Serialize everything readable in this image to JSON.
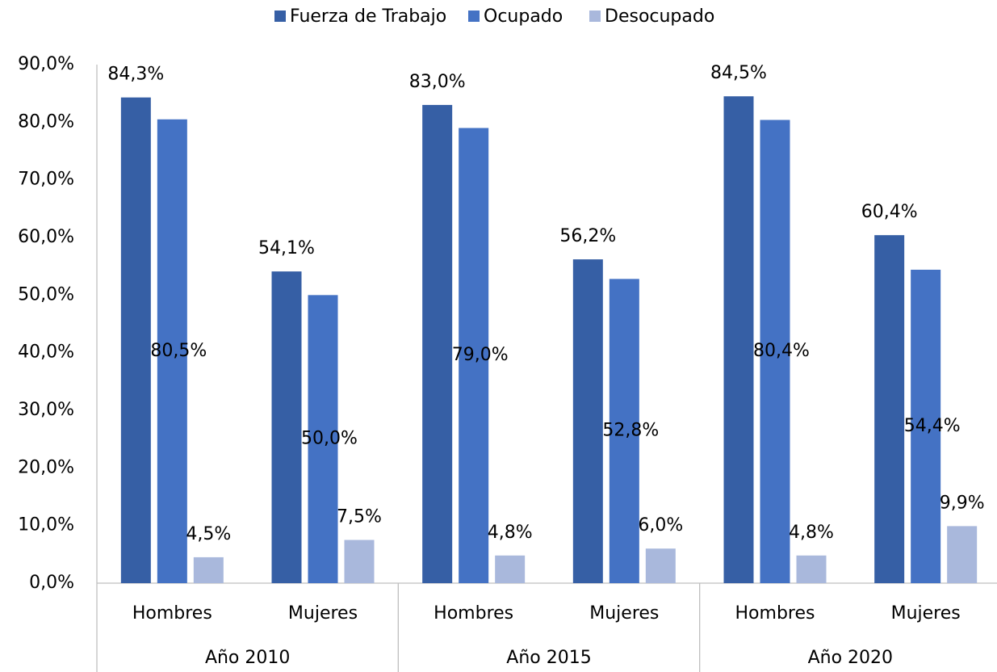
{
  "chart_data": {
    "type": "bar",
    "categories": [
      "Hombres",
      "Mujeres",
      "Hombres",
      "Mujeres",
      "Hombres",
      "Mujeres"
    ],
    "groups": [
      "Año 2010",
      "Año 2015",
      "Año 2020"
    ],
    "series": [
      {
        "name": "Fuerza de Trabajo",
        "color": "#365fa5",
        "values": [
          84.3,
          54.1,
          83.0,
          56.2,
          84.5,
          60.4
        ],
        "value_labels": [
          "84,3%",
          "54,1%",
          "83,0%",
          "56,2%",
          "84,5%",
          "60,4%"
        ]
      },
      {
        "name": "Ocupado",
        "color": "#4472c4",
        "values": [
          80.5,
          50.0,
          79.0,
          52.8,
          80.4,
          54.4
        ],
        "value_labels": [
          "80,5%",
          "50,0%",
          "79,0%",
          "52,8%",
          "80,4%",
          "54,4%"
        ]
      },
      {
        "name": "Desocupado",
        "color": "#a9b8dc",
        "values": [
          4.5,
          7.5,
          4.8,
          6.0,
          4.8,
          9.9
        ],
        "value_labels": [
          "4,5%",
          "7,5%",
          "4,8%",
          "6,0%",
          "4,8%",
          "9,9%"
        ]
      }
    ],
    "ylim": [
      0,
      90
    ],
    "yticks": [
      {
        "value": 0,
        "label": "0,0%"
      },
      {
        "value": 10,
        "label": "10,0%"
      },
      {
        "value": 20,
        "label": "20,0%"
      },
      {
        "value": 30,
        "label": "30,0%"
      },
      {
        "value": 40,
        "label": "40,0%"
      },
      {
        "value": 50,
        "label": "50,0%"
      },
      {
        "value": 60,
        "label": "60,0%"
      },
      {
        "value": 70,
        "label": "70,0%"
      },
      {
        "value": 80,
        "label": "80,0%"
      },
      {
        "value": 90,
        "label": "90,0%"
      }
    ],
    "grid": false,
    "legend": "top"
  }
}
